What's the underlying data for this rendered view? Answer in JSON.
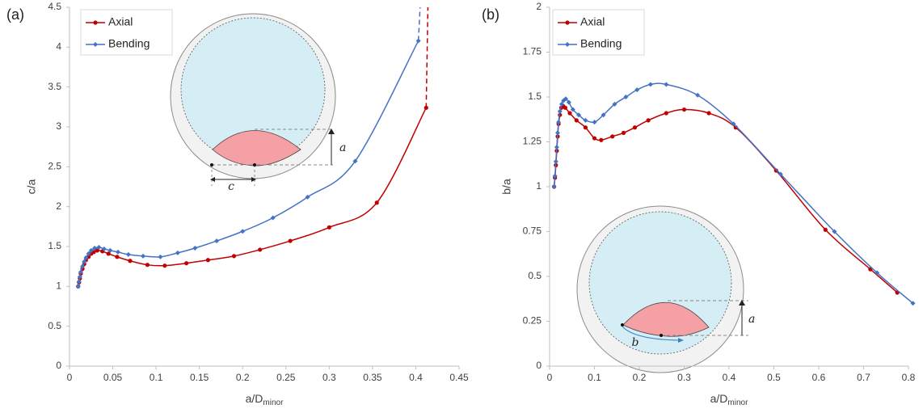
{
  "chart_data": [
    {
      "type": "line",
      "panel_label": "(a)",
      "ylabel": "c/a",
      "xlabel": "a/D",
      "xlabel_sub": "minor",
      "xlim": [
        0,
        0.45
      ],
      "ylim": [
        0,
        4.5
      ],
      "xticks": [
        0,
        0.05,
        0.1,
        0.15,
        0.2,
        0.25,
        0.3,
        0.35,
        0.4,
        0.45
      ],
      "yticks": [
        0,
        0.5,
        1,
        1.5,
        2,
        2.5,
        3,
        3.5,
        4,
        4.5
      ],
      "legend": "upper-left",
      "annotations": [
        "a",
        "c"
      ],
      "series": [
        {
          "name": "Axial",
          "color": "#c00000",
          "marker": "circle",
          "asymptote": 0.414,
          "x": [
            0.01,
            0.011,
            0.012,
            0.013,
            0.015,
            0.017,
            0.019,
            0.022,
            0.025,
            0.028,
            0.032,
            0.038,
            0.045,
            0.055,
            0.07,
            0.09,
            0.11,
            0.135,
            0.16,
            0.19,
            0.22,
            0.255,
            0.3,
            0.355,
            0.412
          ],
          "values": [
            1.0,
            1.05,
            1.1,
            1.16,
            1.22,
            1.28,
            1.33,
            1.37,
            1.41,
            1.43,
            1.45,
            1.44,
            1.41,
            1.37,
            1.32,
            1.27,
            1.26,
            1.29,
            1.33,
            1.38,
            1.46,
            1.57,
            1.74,
            2.05,
            3.24
          ]
        },
        {
          "name": "Bending",
          "color": "#4472c4",
          "marker": "diamond",
          "asymptote": 0.405,
          "x": [
            0.01,
            0.011,
            0.012,
            0.013,
            0.015,
            0.017,
            0.019,
            0.022,
            0.025,
            0.029,
            0.034,
            0.04,
            0.047,
            0.056,
            0.068,
            0.085,
            0.105,
            0.125,
            0.145,
            0.17,
            0.2,
            0.235,
            0.275,
            0.33,
            0.403
          ],
          "values": [
            1.0,
            1.06,
            1.12,
            1.18,
            1.25,
            1.31,
            1.36,
            1.41,
            1.45,
            1.48,
            1.49,
            1.47,
            1.45,
            1.43,
            1.4,
            1.38,
            1.37,
            1.42,
            1.48,
            1.57,
            1.69,
            1.86,
            2.12,
            2.57,
            4.08
          ]
        }
      ]
    },
    {
      "type": "line",
      "panel_label": "(b)",
      "ylabel": "b/a",
      "xlabel": "a/D",
      "xlabel_sub": "minor",
      "xlim": [
        0,
        0.8
      ],
      "ylim": [
        0,
        2
      ],
      "xticks": [
        0,
        0.1,
        0.2,
        0.3,
        0.4,
        0.5,
        0.6,
        0.7,
        0.8
      ],
      "yticks": [
        0,
        0.25,
        0.5,
        0.75,
        1,
        1.25,
        1.5,
        1.75,
        2
      ],
      "legend": "upper-left",
      "annotations": [
        "a",
        "b"
      ],
      "series": [
        {
          "name": "Axial",
          "color": "#c00000",
          "marker": "circle",
          "x": [
            0.01,
            0.012,
            0.014,
            0.016,
            0.018,
            0.02,
            0.023,
            0.026,
            0.03,
            0.035,
            0.045,
            0.06,
            0.08,
            0.1,
            0.115,
            0.14,
            0.165,
            0.19,
            0.22,
            0.26,
            0.3,
            0.355,
            0.415,
            0.505,
            0.615,
            0.715,
            0.775
          ],
          "values": [
            1.0,
            1.05,
            1.12,
            1.2,
            1.28,
            1.35,
            1.4,
            1.44,
            1.45,
            1.44,
            1.41,
            1.37,
            1.33,
            1.27,
            1.26,
            1.28,
            1.3,
            1.33,
            1.37,
            1.41,
            1.43,
            1.41,
            1.33,
            1.09,
            0.76,
            0.54,
            0.41
          ]
        },
        {
          "name": "Bending",
          "color": "#4472c4",
          "marker": "diamond",
          "x": [
            0.01,
            0.012,
            0.014,
            0.016,
            0.018,
            0.02,
            0.023,
            0.027,
            0.031,
            0.036,
            0.043,
            0.052,
            0.065,
            0.08,
            0.1,
            0.12,
            0.145,
            0.17,
            0.195,
            0.225,
            0.26,
            0.33,
            0.41,
            0.515,
            0.635,
            0.73,
            0.81
          ],
          "values": [
            1.0,
            1.06,
            1.14,
            1.22,
            1.3,
            1.36,
            1.42,
            1.46,
            1.48,
            1.49,
            1.47,
            1.43,
            1.4,
            1.37,
            1.36,
            1.4,
            1.46,
            1.5,
            1.54,
            1.57,
            1.57,
            1.51,
            1.35,
            1.07,
            0.75,
            0.52,
            0.35
          ]
        }
      ]
    }
  ]
}
